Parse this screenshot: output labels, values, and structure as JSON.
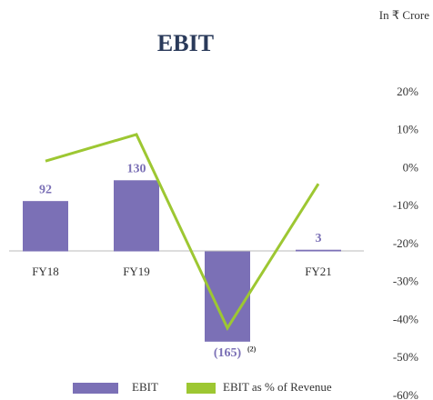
{
  "chart_data": {
    "type": "bar_line",
    "title": "EBIT",
    "unit_note": "In ₹ Crore",
    "categories": [
      "FY18",
      "FY19",
      "FY20",
      "FY21"
    ],
    "series": [
      {
        "name": "EBIT",
        "type": "bar",
        "color": "#7b70b6",
        "values": [
          92,
          130,
          -165,
          3
        ],
        "value_labels": [
          "92",
          "130",
          "(165)",
          "3"
        ]
      },
      {
        "name": "EBIT as % of Revenue",
        "type": "line",
        "axis": "y2",
        "color": "#9dc732",
        "values": [
          2,
          9,
          -42,
          -4
        ]
      }
    ],
    "footnote_marker": "(2)",
    "ylim": [
      -265,
      290
    ],
    "y2lim": [
      -60,
      20
    ],
    "y2ticks": [
      {
        "value": 20,
        "label": "20%"
      },
      {
        "value": 10,
        "label": "10%"
      },
      {
        "value": 0,
        "label": "0%"
      },
      {
        "value": -10,
        "label": "-10%"
      },
      {
        "value": -20,
        "label": "-20%"
      },
      {
        "value": -30,
        "label": "-30%"
      },
      {
        "value": -40,
        "label": "-40%"
      },
      {
        "value": -50,
        "label": "-50%"
      },
      {
        "value": -60,
        "label": "-60%"
      }
    ],
    "grid": false
  }
}
